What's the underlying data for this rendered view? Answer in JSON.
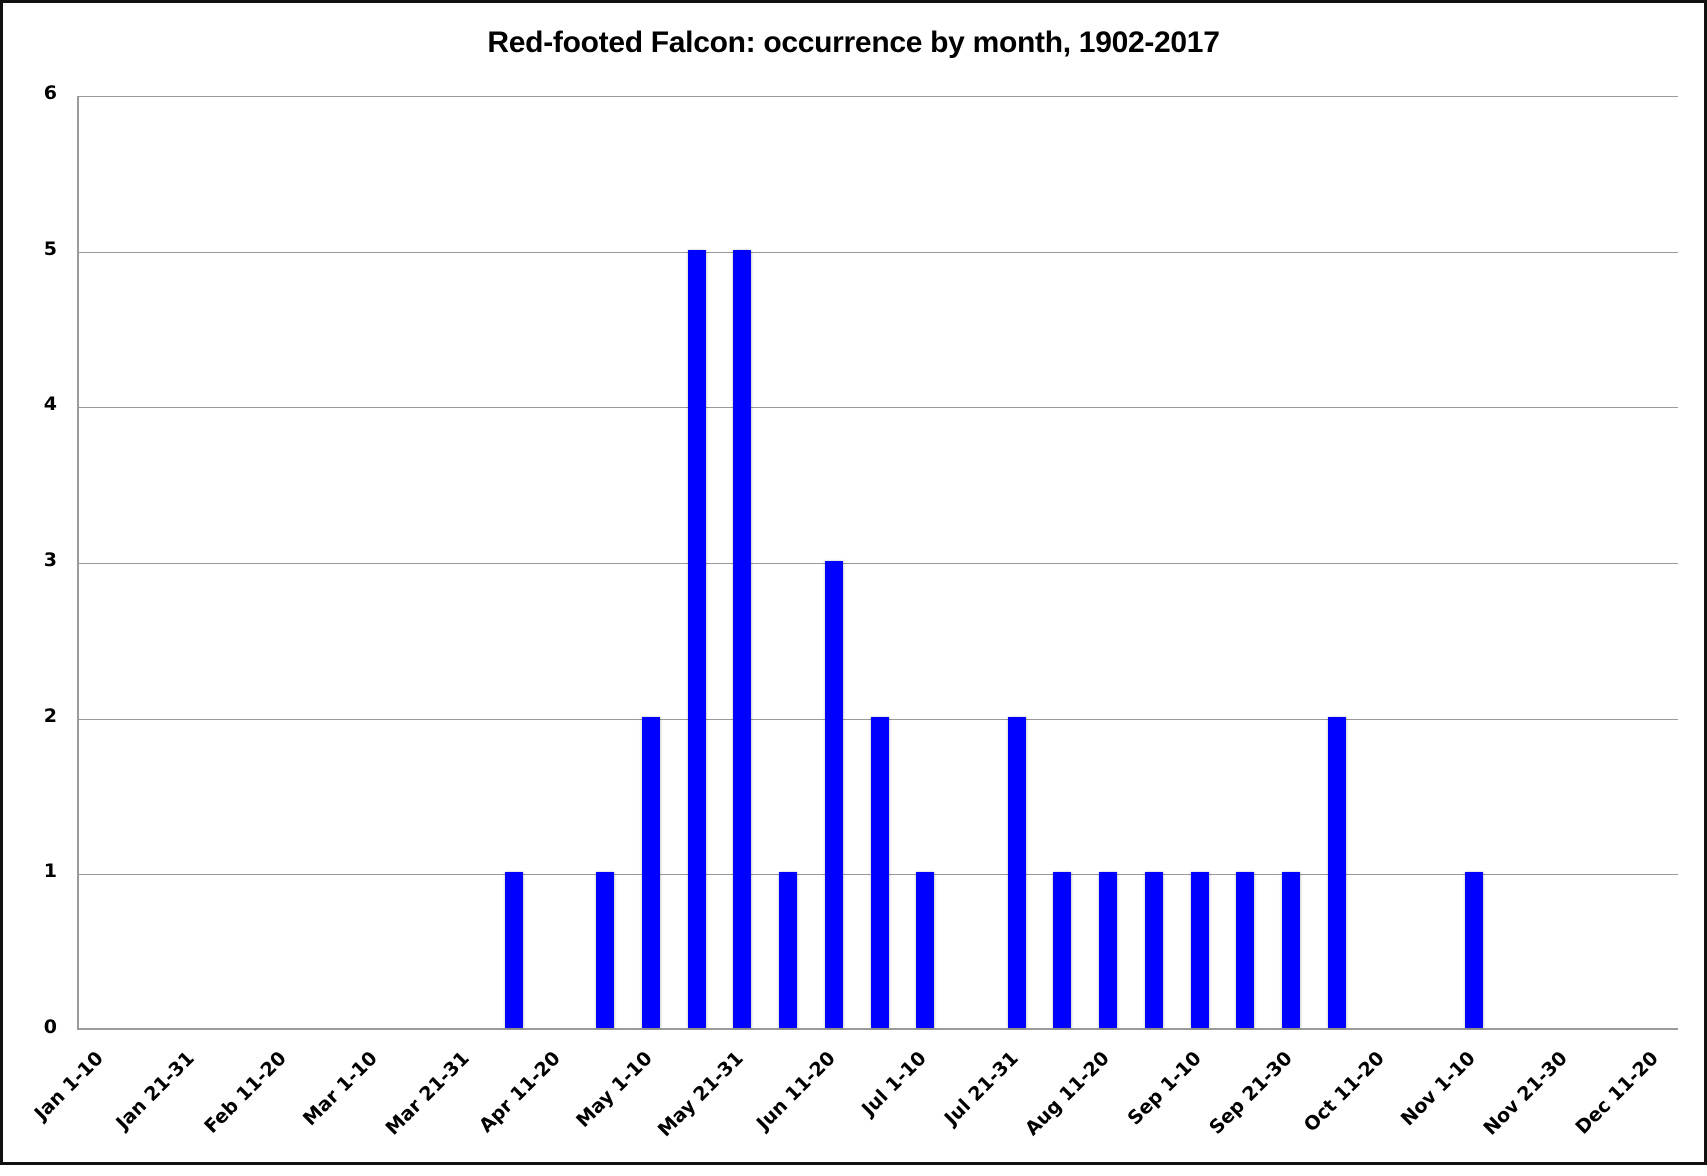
{
  "chart_data": {
    "type": "bar",
    "title": "Red-footed Falcon: occurrence by month, 1902-2017",
    "xlabel": "",
    "ylabel": "",
    "ylim": [
      0,
      6
    ],
    "yticks": [
      0,
      1,
      2,
      3,
      4,
      5,
      6
    ],
    "grid": true,
    "legend": null,
    "bar_color": "#0000ff",
    "categories": [
      "Jan 1-10",
      "Jan 11-20",
      "Jan 21-31",
      "Feb 1-10",
      "Feb 11-20",
      "Feb 21-29",
      "Mar 1-10",
      "Mar 11-20",
      "Mar 21-31",
      "Apr 1-10",
      "Apr 11-20",
      "Apr 21-30",
      "May 1-10",
      "May 11-20",
      "May 21-31",
      "Jun 1-10",
      "Jun 11-20",
      "Jun 21-30",
      "Jul 1-10",
      "Jul 11-20",
      "Jul 21-31",
      "Aug 1-10",
      "Aug 11-20",
      "Aug 21-31",
      "Sep 1-10",
      "Sep 11-20",
      "Sep 21-30",
      "Oct 1-10",
      "Oct 11-20",
      "Oct 21-31",
      "Nov 1-10",
      "Nov 11-20",
      "Nov 21-30",
      "Dec 1-10",
      "Dec 11-20"
    ],
    "values": [
      0,
      0,
      0,
      0,
      0,
      0,
      0,
      0,
      0,
      1,
      0,
      1,
      2,
      5,
      5,
      1,
      3,
      2,
      1,
      0,
      2,
      1,
      1,
      1,
      1,
      1,
      1,
      2,
      0,
      0,
      1,
      0,
      0,
      0,
      0
    ],
    "tick_labels_shown": [
      "Jan 1-10",
      "Jan 21-31",
      "Feb 11-20",
      "Mar 1-10",
      "Mar 21-31",
      "Apr 11-20",
      "May 1-10",
      "May 21-31",
      "Jun 11-20",
      "Jul 1-10",
      "Jul 21-31",
      "Aug 11-20",
      "Sep 1-10",
      "Sep 21-30",
      "Oct 11-20",
      "Nov 1-10",
      "Nov 21-30",
      "Dec 11-20"
    ]
  }
}
